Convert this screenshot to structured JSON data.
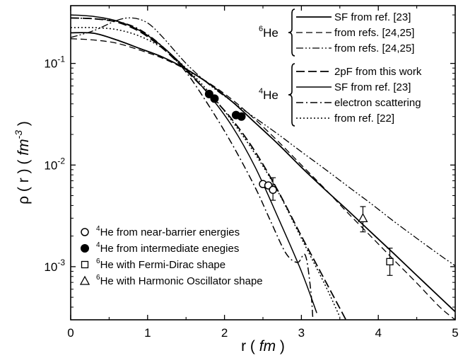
{
  "chart_data": {
    "type": "line",
    "xlabel_main": "r ( ",
    "xlabel_unit": "fm",
    "xlabel_end": " )",
    "ylabel_main": "ρ ( r ) ( ",
    "ylabel_unit": "fm",
    "ylabel_exp": "-3",
    "ylabel_end": " )",
    "xlim": [
      0,
      5
    ],
    "ylim": [
      0.0003,
      0.37
    ],
    "log_y": true,
    "grid": false,
    "xticks": [
      {
        "value": 0,
        "label": "0"
      },
      {
        "value": 1,
        "label": "1"
      },
      {
        "value": 2,
        "label": "2"
      },
      {
        "value": 3,
        "label": "3"
      },
      {
        "value": 4,
        "label": "4"
      },
      {
        "value": 5,
        "label": "5"
      }
    ],
    "yticks": [
      {
        "value": 0.001,
        "base": "10",
        "exp": "-3"
      },
      {
        "value": 0.01,
        "base": "10",
        "exp": "-2"
      },
      {
        "value": 0.1,
        "base": "10",
        "exp": "-1"
      }
    ],
    "legend_groups": [
      {
        "sup": "6",
        "label": "He",
        "entries": [
          0,
          1,
          2
        ]
      },
      {
        "sup": "4",
        "label": "He",
        "entries": [
          3,
          4,
          5,
          6
        ]
      }
    ],
    "series": [
      {
        "name": "SF from ref. [23]",
        "style": "solid",
        "width": 1.8,
        "x": [
          0,
          0.3,
          0.6,
          0.9,
          1.2,
          1.5,
          1.8,
          2.1,
          2.4,
          2.7,
          3.0,
          3.3,
          3.6,
          3.9,
          4.2,
          4.5,
          4.8,
          5.0
        ],
        "y": [
          0.2,
          0.198,
          0.17,
          0.14,
          0.115,
          0.088,
          0.063,
          0.042,
          0.026,
          0.016,
          0.0095,
          0.0058,
          0.0036,
          0.0022,
          0.00135,
          0.00082,
          0.0005,
          0.00036
        ]
      },
      {
        "name": "from refs. [24,25]",
        "style": "dashed",
        "width": 1.3,
        "x": [
          0,
          0.3,
          0.6,
          0.9,
          1.2,
          1.5,
          1.8,
          2.1,
          2.4,
          2.7,
          3.0,
          3.3,
          3.6,
          3.9,
          4.2,
          4.5,
          4.8,
          5.0
        ],
        "y": [
          0.175,
          0.17,
          0.158,
          0.135,
          0.112,
          0.087,
          0.064,
          0.044,
          0.028,
          0.017,
          0.01,
          0.0059,
          0.0034,
          0.002,
          0.00117,
          0.00069,
          0.0004,
          0.0003
        ]
      },
      {
        "name": "from refs. [24,25]",
        "style": "dashdotdot",
        "width": 1.3,
        "x": [
          0,
          0.3,
          0.6,
          0.8,
          1.0,
          1.2,
          1.5,
          1.8,
          2.1,
          2.4,
          2.7,
          3.0,
          3.3,
          3.6,
          3.9,
          4.2,
          4.5,
          4.8,
          5.0
        ],
        "y": [
          0.18,
          0.21,
          0.265,
          0.28,
          0.25,
          0.18,
          0.1,
          0.062,
          0.042,
          0.029,
          0.02,
          0.0135,
          0.0092,
          0.0062,
          0.0042,
          0.0028,
          0.0019,
          0.0013,
          0.00102
        ]
      },
      {
        "name": "2pF from this work",
        "style": "longdash",
        "width": 1.8,
        "x": [
          0,
          0.3,
          0.6,
          0.9,
          1.2,
          1.5,
          1.8,
          2.1,
          2.4,
          2.7,
          3.0,
          3.3,
          3.6
        ],
        "y": [
          0.28,
          0.275,
          0.255,
          0.205,
          0.14,
          0.085,
          0.05,
          0.028,
          0.0135,
          0.0055,
          0.002,
          0.00075,
          0.00028
        ]
      },
      {
        "name": "SF from ref. [23]",
        "style": "solid",
        "width": 1.5,
        "x": [
          0,
          0.3,
          0.6,
          0.9,
          1.2,
          1.5,
          1.8,
          2.1,
          2.4,
          2.7,
          3.0,
          3.2
        ],
        "y": [
          0.3,
          0.29,
          0.262,
          0.21,
          0.145,
          0.088,
          0.049,
          0.024,
          0.0095,
          0.003,
          0.0009,
          0.00035
        ]
      },
      {
        "name": "electron scattering",
        "style": "dashdot",
        "width": 1.5,
        "x": [
          0,
          0.3,
          0.6,
          0.9,
          1.2,
          1.5,
          1.8,
          2.1,
          2.4,
          2.6,
          2.8,
          2.95,
          3.05,
          3.12,
          3.15
        ],
        "y": [
          0.28,
          0.275,
          0.26,
          0.215,
          0.145,
          0.082,
          0.038,
          0.016,
          0.006,
          0.0028,
          0.00135,
          0.0011,
          0.0013,
          0.0006,
          0.0003
        ]
      },
      {
        "name": "from ref. [22]",
        "style": "dotted",
        "width": 1.5,
        "x": [
          0,
          0.3,
          0.6,
          0.9,
          1.2,
          1.5,
          1.8,
          2.1,
          2.4,
          2.7,
          3.0,
          3.3,
          3.5
        ],
        "y": [
          0.225,
          0.225,
          0.215,
          0.185,
          0.14,
          0.09,
          0.052,
          0.027,
          0.0128,
          0.0054,
          0.0019,
          0.00068,
          0.00032
        ]
      }
    ],
    "points": [
      {
        "group": 0,
        "x": 2.5,
        "y": 0.0065
      },
      {
        "group": 0,
        "x": 2.57,
        "y": 0.0063
      },
      {
        "group": 0,
        "x": 2.63,
        "y": 0.0057,
        "err_lo": 0.0012,
        "err_hi": 0.0018
      },
      {
        "group": 1,
        "x": 1.8,
        "y": 0.05
      },
      {
        "group": 1,
        "x": 1.87,
        "y": 0.045
      },
      {
        "group": 1,
        "x": 2.15,
        "y": 0.031
      },
      {
        "group": 1,
        "x": 2.22,
        "y": 0.03
      },
      {
        "group": 2,
        "x": 4.15,
        "y": 0.00112,
        "err_lo": 0.0003,
        "err_hi": 0.0004
      },
      {
        "group": 3,
        "x": 3.8,
        "y": 0.003,
        "err_lo": 0.0008,
        "err_hi": 0.0009
      }
    ],
    "point_legend": [
      {
        "marker": "open-circle",
        "sup": "4",
        "label": "He from near-barrier energies"
      },
      {
        "marker": "filled-circle",
        "sup": "4",
        "label": "He from intermediate enegies"
      },
      {
        "marker": "open-square",
        "sup": "6",
        "label": "He with Fermi-Dirac shape"
      },
      {
        "marker": "open-triangle",
        "sup": "6",
        "label": "He with Harmonic Oscillator shape"
      }
    ]
  }
}
